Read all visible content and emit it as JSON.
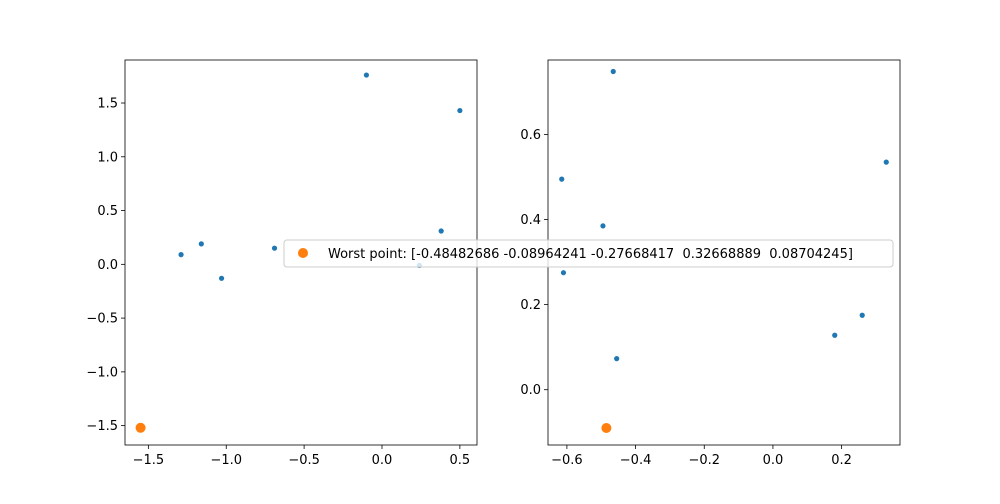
{
  "chart_data": [
    {
      "type": "scatter",
      "title": "",
      "xlabel": "",
      "ylabel": "",
      "xlim": [
        -1.65,
        0.61
      ],
      "ylim": [
        -1.68,
        1.9
      ],
      "xticks": [
        -1.5,
        -1.0,
        -0.5,
        0.0,
        0.5
      ],
      "xtick_labels": [
        "−1.5",
        "−1.0",
        "−0.5",
        "0.0",
        "0.5"
      ],
      "yticks": [
        -1.5,
        -1.0,
        -0.5,
        0.0,
        0.5,
        1.0,
        1.5
      ],
      "ytick_labels": [
        "−1.5",
        "−1.0",
        "−0.5",
        "0.0",
        "0.5",
        "1.0",
        "1.5"
      ],
      "grid": false,
      "series": [
        {
          "color": "#1f77b4",
          "marker_size": "small",
          "points": [
            {
              "x": -1.29,
              "y": 0.09
            },
            {
              "x": -1.16,
              "y": 0.19
            },
            {
              "x": -1.03,
              "y": -0.13
            },
            {
              "x": -0.69,
              "y": 0.15
            },
            {
              "x": -0.1,
              "y": 1.76
            },
            {
              "x": 0.5,
              "y": 1.43
            },
            {
              "x": 0.38,
              "y": 0.31
            },
            {
              "x": 0.24,
              "y": -0.01
            }
          ]
        },
        {
          "name": "Worst point: [-0.48482686 -0.08964241 -0.27668417  0.32668889  0.08704245]",
          "color": "#ff7f0e",
          "marker_size": "large",
          "points": [
            {
              "x": -1.55,
              "y": -1.52
            }
          ]
        }
      ]
    },
    {
      "type": "scatter",
      "title": "",
      "xlabel": "",
      "ylabel": "",
      "xlim": [
        -0.655,
        0.37
      ],
      "ylim": [
        -0.13,
        0.775
      ],
      "xticks": [
        -0.6,
        -0.4,
        -0.2,
        0.0,
        0.2
      ],
      "xtick_labels": [
        "−0.6",
        "−0.4",
        "−0.2",
        "0.0",
        "0.2"
      ],
      "yticks": [
        0.0,
        0.2,
        0.4,
        0.6
      ],
      "ytick_labels": [
        "0.0",
        "0.2",
        "0.4",
        "0.6"
      ],
      "grid": false,
      "series": [
        {
          "color": "#1f77b4",
          "marker_size": "small",
          "points": [
            {
              "x": -0.465,
              "y": 0.748
            },
            {
              "x": -0.615,
              "y": 0.495
            },
            {
              "x": -0.495,
              "y": 0.385
            },
            {
              "x": -0.61,
              "y": 0.275
            },
            {
              "x": -0.455,
              "y": 0.073
            },
            {
              "x": 0.18,
              "y": 0.128
            },
            {
              "x": 0.26,
              "y": 0.175
            },
            {
              "x": 0.33,
              "y": 0.535
            }
          ]
        },
        {
          "color": "#ff7f0e",
          "marker_size": "large",
          "points": [
            {
              "x": -0.485,
              "y": -0.09
            }
          ]
        }
      ]
    }
  ],
  "legend": {
    "label": "Worst point: [-0.48482686 -0.08964241 -0.27668417  0.32668889  0.08704245]",
    "marker_color": "#ff7f0e",
    "placement": "center, spanning both panels"
  }
}
